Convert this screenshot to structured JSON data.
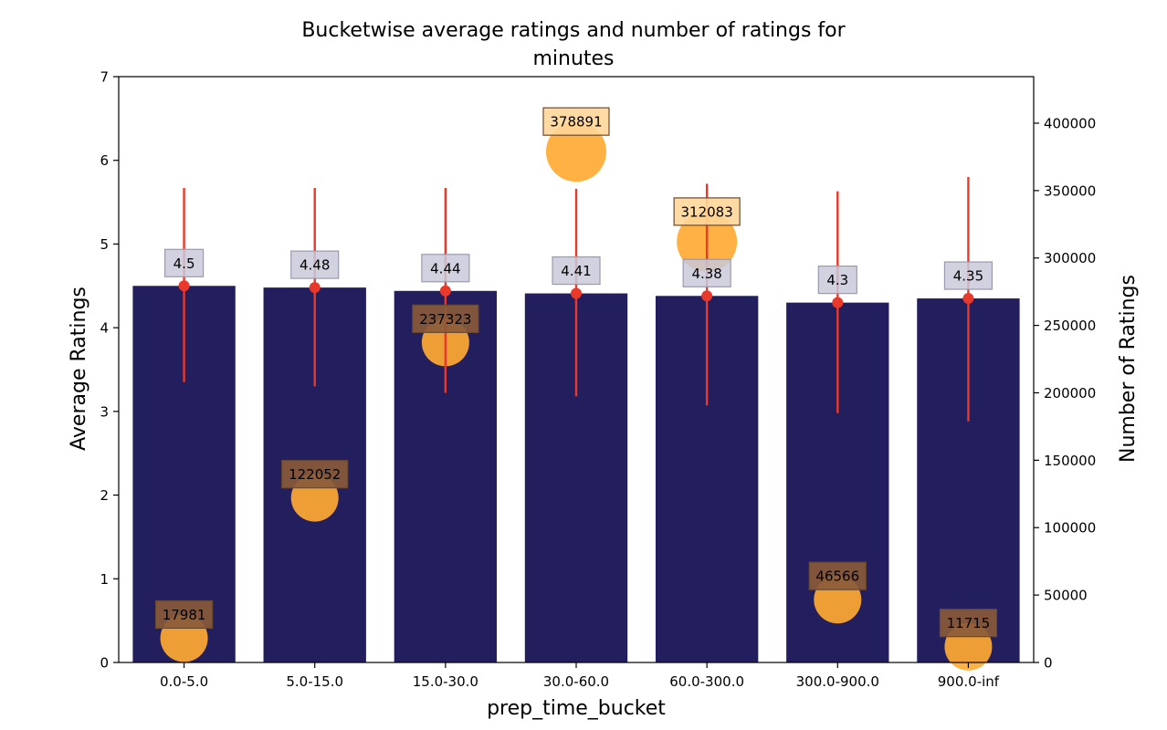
{
  "chart_data": {
    "type": "bar",
    "title": "Bucketwise average ratings and number of ratings for minutes",
    "title_lines": [
      "Bucketwise average ratings and number of ratings for",
      "minutes"
    ],
    "xlabel": "prep_time_bucket",
    "ylabel": "Average Ratings",
    "y2label": "Number of Ratings",
    "categories": [
      "0.0-5.0",
      "5.0-15.0",
      "15.0-30.0",
      "30.0-60.0",
      "60.0-300.0",
      "300.0-900.0",
      "900.0-inf"
    ],
    "series": [
      {
        "values": [
          4.5,
          4.48,
          4.44,
          4.41,
          4.38,
          4.3,
          4.35
        ],
        "labels": [
          "4.5",
          "4.48",
          "4.44",
          "4.41",
          "4.38",
          "4.3",
          "4.35"
        ],
        "error_low": [
          3.35,
          3.3,
          3.22,
          3.18,
          3.07,
          2.98,
          2.88
        ],
        "error_high": [
          5.67,
          5.67,
          5.67,
          5.66,
          5.72,
          5.63,
          5.8
        ],
        "color": "#231f5e",
        "error_color": "#e8392b"
      },
      {
        "values": [
          17981,
          122052,
          237323,
          378891,
          312083,
          46566,
          11715
        ],
        "labels": [
          "17981",
          "122052",
          "237323",
          "378891",
          "312083",
          "46566",
          "11715"
        ],
        "color": "#ffaa33"
      }
    ],
    "ylim": [
      0,
      7
    ],
    "yticks": [
      0,
      1,
      2,
      3,
      4,
      5,
      6,
      7
    ],
    "y2lim": [
      0,
      434500
    ],
    "y2ticks": [
      0,
      50000,
      100000,
      150000,
      200000,
      250000,
      300000,
      350000,
      400000
    ],
    "grid": false,
    "colors": {
      "bar_label_box": "#c9c9da",
      "count_label_box_dark": "#8a5a3a",
      "count_label_box_light": "#ffd699"
    }
  }
}
